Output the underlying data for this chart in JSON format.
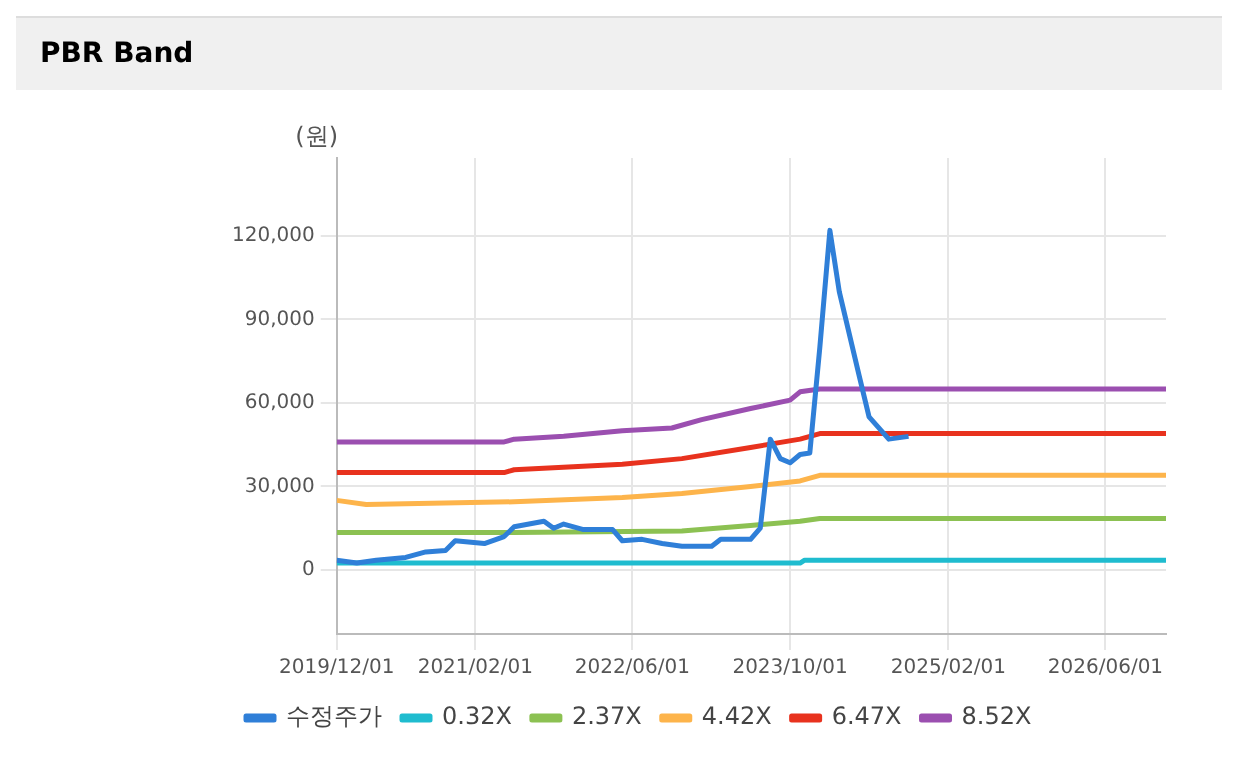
{
  "chart_data": {
    "type": "line",
    "title": "PBR Band",
    "ylabel": "(원)",
    "xlim": [
      "2019-12-01",
      "2026-12-05"
    ],
    "xticks": [
      {
        "value": "2019-12-01",
        "label": "2019/12/01"
      },
      {
        "value": "2021-02-01",
        "label": "2021/02/01"
      },
      {
        "value": "2022-06-01",
        "label": "2022/06/01"
      },
      {
        "value": "2023-10-01",
        "label": "2023/10/01"
      },
      {
        "value": "2025-02-01",
        "label": "2025/02/01"
      },
      {
        "value": "2026-06-01",
        "label": "2026/06/01"
      }
    ],
    "ylim": [
      -23000,
      148000
    ],
    "yticks": [
      {
        "value": 0,
        "label": "0"
      },
      {
        "value": 30000,
        "label": "30,000"
      },
      {
        "value": 60000,
        "label": "60,000"
      },
      {
        "value": 90000,
        "label": "90,000"
      },
      {
        "value": 120000,
        "label": "120,000"
      }
    ],
    "grid": true,
    "legend": "bottom",
    "marker": "none",
    "line_style": "solid",
    "series": [
      {
        "name": "수정주가",
        "color": "#2f7fd8",
        "x": [
          "2019-12",
          "2020-02",
          "2020-04",
          "2020-07",
          "2020-09",
          "2020-11",
          "2020-12",
          "2021-03",
          "2021-05",
          "2021-06",
          "2021-09",
          "2021-10",
          "2021-11",
          "2022-01",
          "2022-04",
          "2022-05",
          "2022-07",
          "2022-09",
          "2022-11",
          "2023-02",
          "2023-03",
          "2023-06",
          "2023-07",
          "2023-08",
          "2023-09",
          "2023-10",
          "2023-11",
          "2023-12",
          "2024-01",
          "2024-02",
          "2024-03",
          "2024-05",
          "2024-06",
          "2024-08",
          "2024-10"
        ],
        "values": [
          3500,
          2500,
          3500,
          4500,
          6500,
          7000,
          10500,
          9500,
          12000,
          15500,
          17500,
          15000,
          16500,
          14500,
          14500,
          10500,
          11000,
          9500,
          8500,
          8500,
          11000,
          11000,
          15000,
          47000,
          40000,
          38500,
          41500,
          42000,
          80000,
          122000,
          100000,
          70000,
          55000,
          47000,
          48000
        ]
      },
      {
        "name": "0.32X",
        "color": "#1fbccf",
        "x": [
          "2019-12-01",
          "2023-11-01",
          "2023-11-15",
          "2026-12-05"
        ],
        "values": [
          2500,
          2500,
          3500,
          3500
        ]
      },
      {
        "name": "2.37X",
        "color": "#8cc152",
        "x": [
          "2019-12-01",
          "2021-06",
          "2022-11",
          "2023-06",
          "2023-11",
          "2024-01",
          "2026-12-05"
        ],
        "values": [
          13500,
          13500,
          14000,
          16000,
          17500,
          18500,
          18500
        ]
      },
      {
        "name": "4.42X",
        "color": "#fdb44b",
        "x": [
          "2019-12-01",
          "2020-03",
          "2021-06",
          "2022-05",
          "2022-11",
          "2023-06",
          "2023-11",
          "2024-01",
          "2026-12-05"
        ],
        "values": [
          25000,
          23500,
          24500,
          26000,
          27500,
          30000,
          32000,
          34000,
          34000
        ]
      },
      {
        "name": "6.47X",
        "color": "#e8321e",
        "x": [
          "2019-12-01",
          "2021-05",
          "2021-06",
          "2022-05",
          "2022-11",
          "2023-06",
          "2023-11",
          "2024-01",
          "2026-12-05"
        ],
        "values": [
          35000,
          35000,
          36000,
          38000,
          40000,
          44000,
          47000,
          49000,
          49000
        ]
      },
      {
        "name": "8.52X",
        "color": "#9b4fb0",
        "x": [
          "2019-12-01",
          "2021-05",
          "2021-06",
          "2021-11",
          "2022-05",
          "2022-10",
          "2023-01",
          "2023-06",
          "2023-10",
          "2023-11",
          "2024-01",
          "2026-12-05"
        ],
        "values": [
          46000,
          46000,
          47000,
          48000,
          50000,
          51000,
          54000,
          58000,
          61000,
          64000,
          65000,
          65000
        ]
      }
    ]
  }
}
